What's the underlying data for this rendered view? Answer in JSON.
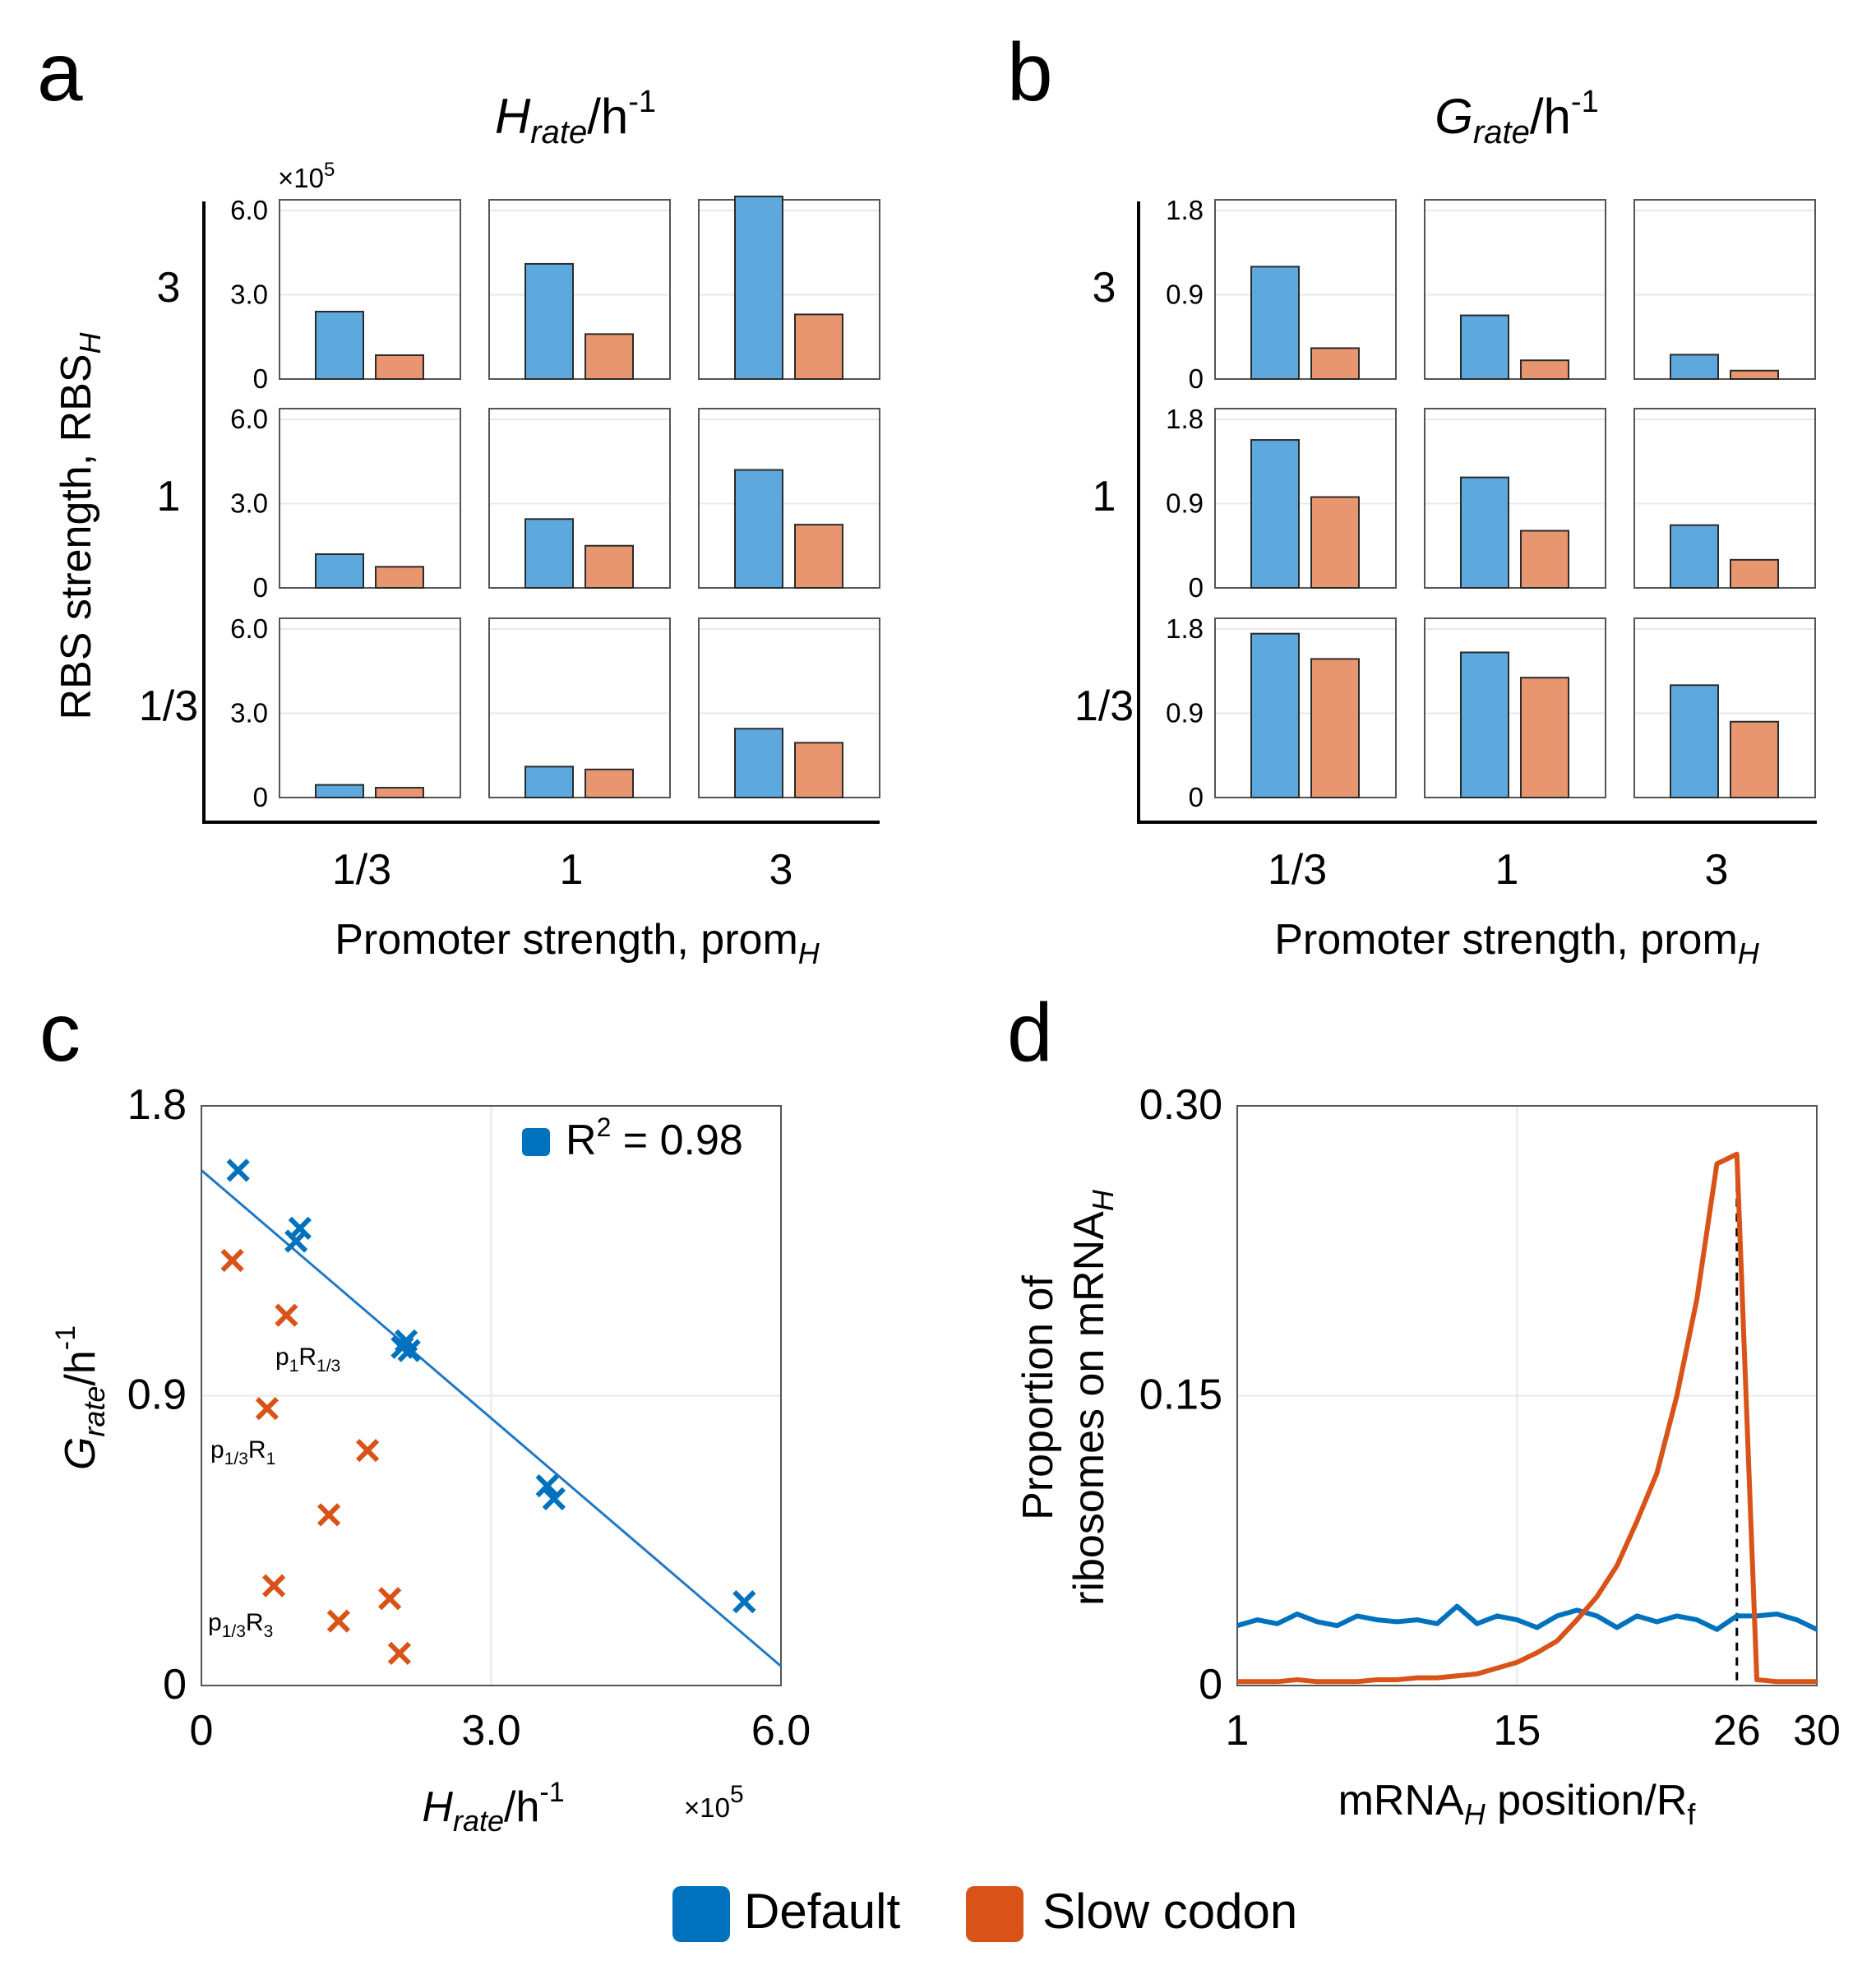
{
  "panels": {
    "a": "a",
    "b": "b",
    "c": "c",
    "d": "d"
  },
  "colors": {
    "default": "#0072BD",
    "slow": "#D95319",
    "bar_default": "#5DA8DD",
    "bar_slow": "#E8966F",
    "fit_line": "#1f78c4"
  },
  "legend": {
    "default_label": "Default",
    "slow_label": "Slow codon"
  },
  "chart_data": [
    {
      "id": "a",
      "type": "bar",
      "title": "H_rate/h^-1",
      "title_main": "H",
      "title_sub": "rate",
      "title_unit": "/h",
      "title_sup": "-1",
      "multiplier_label": "×10",
      "multiplier_exp": "5",
      "ylim": [
        0,
        6.5
      ],
      "yticks": [
        0,
        3.0,
        6.0
      ],
      "yticklabels": [
        "0",
        "3.0",
        "6.0"
      ],
      "rows": [
        "3",
        "1",
        "1/3"
      ],
      "cols": [
        "1/3",
        "1",
        "3"
      ],
      "ylabel_main": "RBS strength, RBS",
      "ylabel_sub": "H",
      "xlabel_main": "Promoter strength, prom",
      "xlabel_sub": "H",
      "series": [
        {
          "name": "Default",
          "values": [
            [
              2.4,
              4.1,
              6.5
            ],
            [
              1.2,
              2.45,
              4.2
            ],
            [
              0.45,
              1.1,
              2.45
            ]
          ]
        },
        {
          "name": "Slow codon",
          "values": [
            [
              0.85,
              1.6,
              2.3
            ],
            [
              0.75,
              1.5,
              2.25
            ],
            [
              0.35,
              1.0,
              1.95
            ]
          ]
        }
      ]
    },
    {
      "id": "b",
      "type": "bar",
      "title": "G_rate/h^-1",
      "title_main": "G",
      "title_sub": "rate",
      "title_unit": "/h",
      "title_sup": "-1",
      "ylim": [
        0,
        1.8
      ],
      "yticks": [
        0,
        0.9,
        1.8
      ],
      "yticklabels": [
        "0",
        "0.9",
        "1.8"
      ],
      "rows": [
        "3",
        "1",
        "1/3"
      ],
      "cols": [
        "1/3",
        "1",
        "3"
      ],
      "xlabel_main": "Promoter strength, prom",
      "xlabel_sub": "H",
      "series": [
        {
          "name": "Default",
          "values": [
            [
              1.2,
              0.68,
              0.26
            ],
            [
              1.58,
              1.18,
              0.67
            ],
            [
              1.75,
              1.55,
              1.2
            ]
          ]
        },
        {
          "name": "Slow codon",
          "values": [
            [
              0.33,
              0.2,
              0.09
            ],
            [
              0.97,
              0.61,
              0.3
            ],
            [
              1.48,
              1.28,
              0.81
            ]
          ]
        }
      ]
    },
    {
      "id": "c",
      "type": "scatter",
      "ylabel_main": "G",
      "ylabel_sub": "rate",
      "ylabel_unit": "/h",
      "ylabel_sup": "-1",
      "xlabel_main": "H",
      "xlabel_sub": "rate",
      "xlabel_unit": "/h",
      "xlabel_sup": "-1",
      "multiplier_label": "×10",
      "multiplier_exp": "5",
      "xlim": [
        0,
        6.0
      ],
      "ylim": [
        0,
        1.8
      ],
      "xticks": [
        0,
        3.0,
        6.0
      ],
      "xticklabels": [
        "0",
        "3.0",
        "6.0"
      ],
      "yticks": [
        0,
        0.9,
        1.8
      ],
      "yticklabels": [
        "0",
        "0.9",
        "1.8"
      ],
      "legend_text": "R",
      "legend_sup": "2",
      "legend_value": " = 0.98",
      "fit": {
        "x": [
          0,
          6.0
        ],
        "y": [
          1.6,
          0.06
        ]
      },
      "series": [
        {
          "name": "Default",
          "x": [
            0.38,
            0.98,
            1.02,
            2.08,
            2.12,
            2.15,
            3.58,
            3.65,
            5.62
          ],
          "y": [
            1.6,
            1.38,
            1.42,
            1.05,
            1.07,
            1.04,
            0.62,
            0.58,
            0.26
          ]
        },
        {
          "name": "Slow codon",
          "x": [
            0.32,
            0.88,
            0.68,
            1.72,
            1.32,
            0.75,
            1.42,
            1.95,
            2.05
          ],
          "y": [
            1.32,
            1.15,
            0.86,
            0.73,
            0.53,
            0.31,
            0.2,
            0.27,
            0.1
          ]
        }
      ],
      "annotations": [
        {
          "text": "p",
          "sub1": "1",
          "mid": "R",
          "sub2": "1/3"
        },
        {
          "text": "p",
          "sub1": "1/3",
          "mid": "R",
          "sub2": "1"
        },
        {
          "text": "p",
          "sub1": "1/3",
          "mid": "R",
          "sub2": "3"
        }
      ]
    },
    {
      "id": "d",
      "type": "line",
      "ylabel_line1": "Proportion of",
      "ylabel_line2_main": "ribosomes on mRNA",
      "ylabel_line2_sub": "H",
      "xlabel_a": "mRNA",
      "xlabel_sub": "H",
      "xlabel_b": " position/R",
      "xlabel_sub2": "f",
      "xlim": [
        1,
        30
      ],
      "ylim": [
        0,
        0.3
      ],
      "xticks": [
        1,
        15,
        26,
        30
      ],
      "xticklabels": [
        "1",
        "15",
        "26",
        "30"
      ],
      "yticks": [
        0,
        0.15,
        0.3
      ],
      "yticklabels": [
        "0",
        "0.15",
        "0.30"
      ],
      "marker_x": 26,
      "x": [
        1,
        2,
        3,
        4,
        5,
        6,
        7,
        8,
        9,
        10,
        11,
        12,
        13,
        14,
        15,
        16,
        17,
        18,
        19,
        20,
        21,
        22,
        23,
        24,
        25,
        26,
        27,
        28,
        29,
        30
      ],
      "series": [
        {
          "name": "Default",
          "values": [
            0.031,
            0.034,
            0.032,
            0.037,
            0.033,
            0.031,
            0.036,
            0.034,
            0.033,
            0.034,
            0.032,
            0.041,
            0.032,
            0.036,
            0.034,
            0.03,
            0.036,
            0.039,
            0.036,
            0.03,
            0.036,
            0.033,
            0.036,
            0.034,
            0.029,
            0.036,
            0.036,
            0.037,
            0.034,
            0.029
          ]
        },
        {
          "name": "Slow codon",
          "values": [
            0.002,
            0.002,
            0.002,
            0.003,
            0.002,
            0.002,
            0.002,
            0.003,
            0.003,
            0.004,
            0.004,
            0.005,
            0.006,
            0.009,
            0.012,
            0.017,
            0.023,
            0.034,
            0.046,
            0.062,
            0.085,
            0.11,
            0.15,
            0.2,
            0.27,
            0.275,
            0.003,
            0.002,
            0.002,
            0.002
          ]
        }
      ]
    }
  ]
}
